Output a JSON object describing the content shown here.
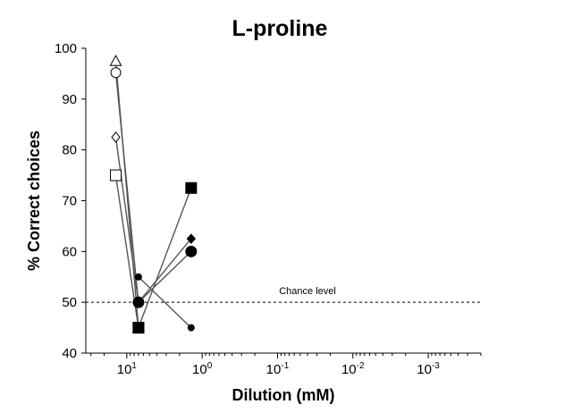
{
  "chart_data": {
    "type": "scatter",
    "title": "L-proline",
    "xlabel": "Dilution (mM)",
    "ylabel": "% Correct choices",
    "x_scale": "log-reversed",
    "xlim": [
      35,
      0.0002
    ],
    "ylim": [
      40,
      100
    ],
    "y_ticks": [
      40,
      50,
      60,
      70,
      80,
      90,
      100
    ],
    "x_tick_labels": [
      {
        "value": 10,
        "base": "10",
        "exp": "1"
      },
      {
        "value": 1,
        "base": "10",
        "exp": "0"
      },
      {
        "value": 0.1,
        "base": "10",
        "exp": "-1"
      },
      {
        "value": 0.01,
        "base": "10",
        "exp": "-2"
      },
      {
        "value": 0.001,
        "base": "10",
        "exp": "-3"
      }
    ],
    "reference_line": {
      "y": 50,
      "label": "Chance level",
      "style": "dashed"
    },
    "grid": false,
    "series": [
      {
        "marker": "triangle-open",
        "points": [
          [
            14,
            97.5
          ],
          [
            7,
            45
          ]
        ]
      },
      {
        "marker": "circle-open",
        "points": [
          [
            14,
            95.2
          ],
          [
            7,
            50
          ]
        ]
      },
      {
        "marker": "diamond-open",
        "points": [
          [
            14,
            82.5
          ],
          [
            7,
            50
          ]
        ]
      },
      {
        "marker": "square-open",
        "points": [
          [
            14,
            75
          ],
          [
            7,
            45
          ]
        ]
      },
      {
        "marker": "square-filled",
        "points": [
          [
            7,
            45
          ],
          [
            1.4,
            72.5
          ]
        ]
      },
      {
        "marker": "diamond-filled",
        "points": [
          [
            7,
            50
          ],
          [
            1.4,
            62.5
          ]
        ]
      },
      {
        "marker": "circle-filled-large",
        "points": [
          [
            7,
            50
          ],
          [
            1.4,
            60
          ]
        ]
      },
      {
        "marker": "circle-filled-small",
        "points": [
          [
            7,
            55
          ],
          [
            1.4,
            45
          ]
        ]
      }
    ],
    "colors": {
      "line": "#555555",
      "marker": "#000000",
      "axis": "#000000"
    }
  }
}
